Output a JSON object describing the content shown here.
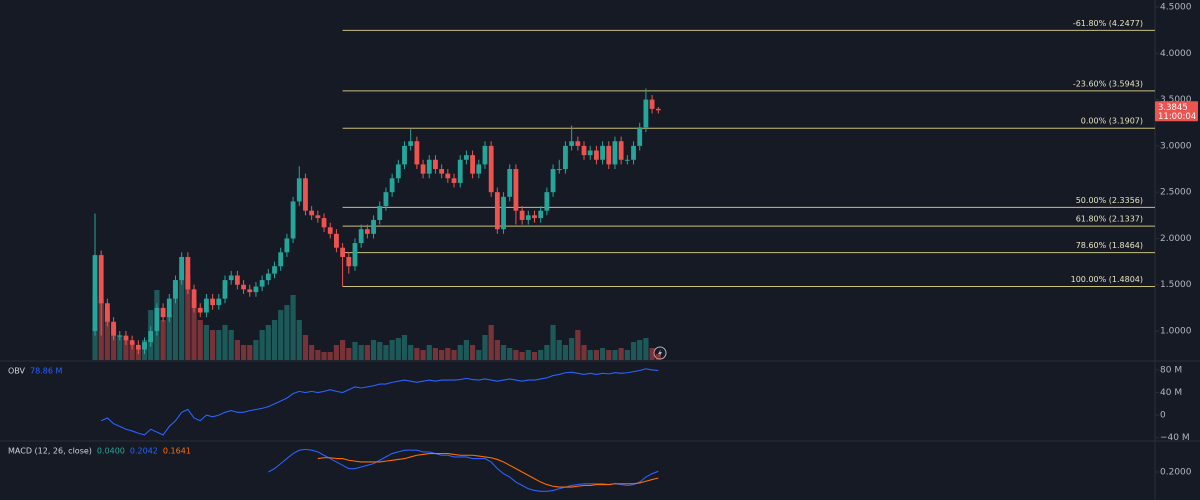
{
  "chart_data": [
    {
      "type": "candlestick",
      "up_color": "#26a69a",
      "down_color": "#ef5350",
      "open": [
        1.0,
        1.82,
        1.3,
        1.1,
        0.95,
        0.95,
        0.9,
        0.85,
        0.8,
        0.88,
        1.0,
        1.25,
        1.15,
        1.35,
        1.55,
        1.8,
        1.45,
        1.25,
        1.2,
        1.35,
        1.28,
        1.35,
        1.55,
        1.6,
        1.5,
        1.45,
        1.42,
        1.48,
        1.55,
        1.62,
        1.7,
        1.85,
        2.0,
        2.4,
        2.65,
        2.3,
        2.25,
        2.22,
        2.12,
        2.05,
        1.9,
        1.8,
        1.7,
        1.95,
        2.1,
        2.05,
        2.2,
        2.35,
        2.5,
        2.65,
        2.8,
        3.0,
        3.05,
        2.8,
        2.7,
        2.85,
        2.75,
        2.7,
        2.65,
        2.6,
        2.85,
        2.9,
        2.7,
        2.8,
        3.0,
        2.5,
        2.1,
        2.45,
        2.75,
        2.3,
        2.2,
        2.25,
        2.22,
        2.3,
        2.5,
        2.75,
        2.75,
        3.0,
        3.05,
        3.0,
        2.9,
        2.95,
        2.85,
        3.0,
        2.8,
        3.05,
        2.85,
        2.85,
        3.0,
        3.2,
        3.5,
        3.4
      ],
      "high": [
        2.27,
        1.87,
        1.35,
        1.15,
        1.0,
        1.0,
        0.95,
        0.9,
        0.93,
        1.05,
        1.3,
        1.3,
        1.4,
        1.6,
        1.85,
        1.85,
        1.5,
        1.3,
        1.4,
        1.4,
        1.4,
        1.6,
        1.65,
        1.65,
        1.55,
        1.5,
        1.53,
        1.6,
        1.67,
        1.75,
        1.9,
        2.05,
        2.45,
        2.78,
        2.7,
        2.35,
        2.3,
        2.27,
        2.17,
        2.1,
        1.95,
        1.85,
        2.0,
        2.15,
        2.15,
        2.25,
        2.4,
        2.55,
        2.7,
        2.85,
        3.05,
        3.18,
        3.1,
        2.85,
        2.9,
        2.9,
        2.8,
        2.75,
        2.7,
        2.9,
        2.95,
        2.95,
        2.85,
        3.05,
        3.05,
        2.55,
        2.5,
        2.8,
        2.8,
        2.35,
        2.3,
        2.3,
        2.35,
        2.55,
        2.8,
        2.85,
        3.05,
        3.22,
        3.1,
        3.05,
        3.0,
        3.0,
        3.05,
        3.05,
        3.1,
        3.1,
        2.9,
        3.05,
        3.25,
        3.62,
        3.55,
        3.42
      ],
      "low": [
        0.95,
        0.95,
        1.05,
        0.9,
        0.9,
        0.85,
        0.8,
        0.75,
        0.75,
        0.83,
        0.95,
        1.1,
        1.1,
        1.3,
        1.5,
        1.4,
        1.2,
        1.15,
        1.15,
        1.23,
        1.23,
        1.3,
        1.5,
        1.45,
        1.4,
        1.37,
        1.37,
        1.43,
        1.5,
        1.57,
        1.65,
        1.8,
        1.95,
        2.35,
        2.25,
        2.2,
        2.17,
        2.07,
        2.0,
        1.85,
        1.48,
        1.62,
        1.65,
        1.9,
        2.0,
        2.0,
        2.15,
        2.3,
        2.45,
        2.6,
        2.75,
        2.95,
        2.75,
        2.65,
        2.65,
        2.7,
        2.65,
        2.6,
        2.55,
        2.55,
        2.8,
        2.65,
        2.65,
        2.75,
        2.45,
        2.05,
        2.05,
        2.4,
        2.15,
        2.15,
        2.15,
        2.17,
        2.17,
        2.25,
        2.45,
        2.7,
        2.7,
        2.95,
        2.95,
        2.85,
        2.85,
        2.8,
        2.8,
        2.75,
        2.75,
        2.8,
        2.8,
        2.8,
        2.95,
        3.15,
        3.35,
        3.35
      ],
      "close": [
        1.82,
        1.3,
        1.1,
        0.95,
        0.95,
        0.9,
        0.85,
        0.8,
        0.88,
        1.0,
        1.25,
        1.15,
        1.35,
        1.55,
        1.8,
        1.45,
        1.25,
        1.2,
        1.35,
        1.28,
        1.35,
        1.55,
        1.6,
        1.5,
        1.45,
        1.42,
        1.48,
        1.55,
        1.62,
        1.7,
        1.85,
        2.0,
        2.4,
        2.65,
        2.3,
        2.25,
        2.22,
        2.12,
        2.05,
        1.9,
        1.8,
        1.7,
        1.95,
        2.1,
        2.05,
        2.2,
        2.35,
        2.5,
        2.65,
        2.8,
        3.0,
        3.05,
        2.8,
        2.7,
        2.85,
        2.75,
        2.7,
        2.65,
        2.6,
        2.85,
        2.9,
        2.7,
        2.8,
        3.0,
        2.5,
        2.1,
        2.45,
        2.75,
        2.3,
        2.2,
        2.25,
        2.22,
        2.3,
        2.5,
        2.75,
        2.75,
        3.0,
        3.05,
        3.0,
        2.9,
        2.95,
        2.85,
        3.0,
        2.8,
        3.05,
        2.85,
        2.85,
        3.0,
        3.2,
        3.5,
        3.4,
        3.3845
      ],
      "volume": [
        65,
        60,
        50,
        35,
        25,
        20,
        15,
        12,
        20,
        50,
        70,
        40,
        45,
        80,
        95,
        85,
        60,
        40,
        35,
        30,
        30,
        35,
        30,
        20,
        15,
        15,
        20,
        30,
        35,
        40,
        50,
        55,
        65,
        40,
        25,
        15,
        10,
        8,
        8,
        15,
        20,
        12,
        18,
        15,
        15,
        20,
        18,
        15,
        20,
        22,
        25,
        15,
        12,
        10,
        15,
        12,
        10,
        12,
        10,
        15,
        20,
        15,
        10,
        25,
        35,
        20,
        15,
        12,
        10,
        8,
        10,
        8,
        10,
        15,
        35,
        20,
        15,
        22,
        30,
        15,
        10,
        10,
        12,
        10,
        10,
        12,
        10,
        18,
        20,
        22,
        12,
        6
      ],
      "ylim": [
        0.687,
        4.576
      ],
      "yticks": [
        {
          "value": 4.5,
          "label": "4.5000"
        },
        {
          "value": 4.0,
          "label": "4.0000"
        },
        {
          "value": 3.5,
          "label": "3.5000"
        },
        {
          "value": 3.0,
          "label": "3.0000"
        },
        {
          "value": 2.5,
          "label": "2.5000"
        },
        {
          "value": 2.0,
          "label": "2.0000"
        },
        {
          "value": 1.5,
          "label": "1.5000"
        },
        {
          "value": 1.0,
          "label": "1.0000"
        }
      ],
      "fib": {
        "color": "#c9c07c",
        "start": 40,
        "levels": [
          {
            "value": 4.2477,
            "label": "-61.80% (4.2477)"
          },
          {
            "value": 3.5943,
            "label": "-23.60% (3.5943)"
          },
          {
            "value": 3.1907,
            "label": "0.00% (3.1907)"
          },
          {
            "value": 2.3356,
            "label": "50.00% (2.3356)"
          },
          {
            "value": 2.1337,
            "label": "61.80% (2.1337)"
          },
          {
            "value": 1.8464,
            "label": "78.60% (1.8464)"
          },
          {
            "value": 1.4804,
            "label": "100.00% (1.4804)"
          }
        ]
      },
      "last_price": 3.3845,
      "countdown": "11:00:04"
    },
    {
      "type": "line",
      "title": "OBV",
      "title_value": "78.86 M",
      "series": [
        {
          "name": "OBV",
          "color": "#2962ff",
          "values": [
            null,
            -10,
            -5,
            -15,
            -20,
            -25,
            -28,
            -32,
            -35,
            -25,
            -30,
            -35,
            -20,
            -10,
            5,
            10,
            -5,
            -10,
            0,
            -3,
            0,
            5,
            8,
            5,
            5,
            8,
            10,
            12,
            15,
            20,
            25,
            30,
            38,
            42,
            40,
            42,
            40,
            42,
            45,
            42,
            40,
            45,
            50,
            48,
            50,
            52,
            55,
            55,
            58,
            60,
            62,
            60,
            58,
            60,
            62,
            60,
            62,
            62,
            62,
            63,
            65,
            63,
            62,
            64,
            62,
            60,
            62,
            64,
            62,
            60,
            62,
            62,
            64,
            66,
            70,
            72,
            75,
            76,
            74,
            72,
            74,
            72,
            74,
            73,
            75,
            74,
            75,
            77,
            79,
            82,
            80,
            78.86
          ]
        }
      ],
      "ylim": [
        -44,
        94
      ],
      "yticks": [
        {
          "value": 80,
          "label": "80 M"
        },
        {
          "value": 40,
          "label": "40 M"
        },
        0,
        {
          "value": -40,
          "label": "−40 M"
        }
      ]
    },
    {
      "type": "line",
      "title": "MACD (12, 26, close)",
      "readouts": [
        {
          "text": "0.0400",
          "color": "#26a69a"
        },
        {
          "text": "0.2042",
          "color": "#2962ff"
        },
        {
          "text": "0.1641",
          "color": "#ff6d00"
        }
      ],
      "series": [
        {
          "color": "#2962ff",
          "values": [
            null,
            null,
            null,
            null,
            null,
            null,
            null,
            null,
            null,
            null,
            null,
            null,
            null,
            null,
            null,
            null,
            null,
            null,
            null,
            null,
            null,
            null,
            null,
            null,
            null,
            null,
            null,
            null,
            0.2,
            0.22,
            0.25,
            0.28,
            0.31,
            0.33,
            0.335,
            0.33,
            0.32,
            0.3,
            0.28,
            0.26,
            0.24,
            0.22,
            0.22,
            0.23,
            0.24,
            0.25,
            0.27,
            0.29,
            0.31,
            0.32,
            0.33,
            0.33,
            0.33,
            0.32,
            0.32,
            0.31,
            0.3,
            0.3,
            0.29,
            0.29,
            0.29,
            0.28,
            0.28,
            0.28,
            0.26,
            0.22,
            0.19,
            0.17,
            0.14,
            0.12,
            0.1,
            0.09,
            0.085,
            0.085,
            0.09,
            0.1,
            0.11,
            0.12,
            0.125,
            0.13,
            0.13,
            0.13,
            0.13,
            0.125,
            0.13,
            0.125,
            0.12,
            0.125,
            0.14,
            0.17,
            0.19,
            0.2042
          ]
        },
        {
          "color": "#ff6d00",
          "values": [
            null,
            null,
            null,
            null,
            null,
            null,
            null,
            null,
            null,
            null,
            null,
            null,
            null,
            null,
            null,
            null,
            null,
            null,
            null,
            null,
            null,
            null,
            null,
            null,
            null,
            null,
            null,
            null,
            null,
            null,
            null,
            null,
            null,
            null,
            null,
            null,
            0.28,
            0.285,
            0.285,
            0.28,
            0.28,
            0.27,
            0.265,
            0.26,
            0.26,
            0.26,
            0.26,
            0.265,
            0.27,
            0.275,
            0.28,
            0.29,
            0.3,
            0.305,
            0.31,
            0.31,
            0.31,
            0.31,
            0.305,
            0.3,
            0.3,
            0.3,
            0.295,
            0.29,
            0.285,
            0.275,
            0.26,
            0.24,
            0.22,
            0.2,
            0.18,
            0.16,
            0.14,
            0.125,
            0.115,
            0.11,
            0.11,
            0.11,
            0.115,
            0.12,
            0.12,
            0.125,
            0.125,
            0.125,
            0.13,
            0.13,
            0.13,
            0.13,
            0.135,
            0.145,
            0.155,
            0.1641
          ]
        }
      ],
      "ylim": [
        0.033,
        0.379
      ],
      "yticks": [
        {
          "value": 0.2,
          "label": "0.2000"
        }
      ]
    }
  ]
}
